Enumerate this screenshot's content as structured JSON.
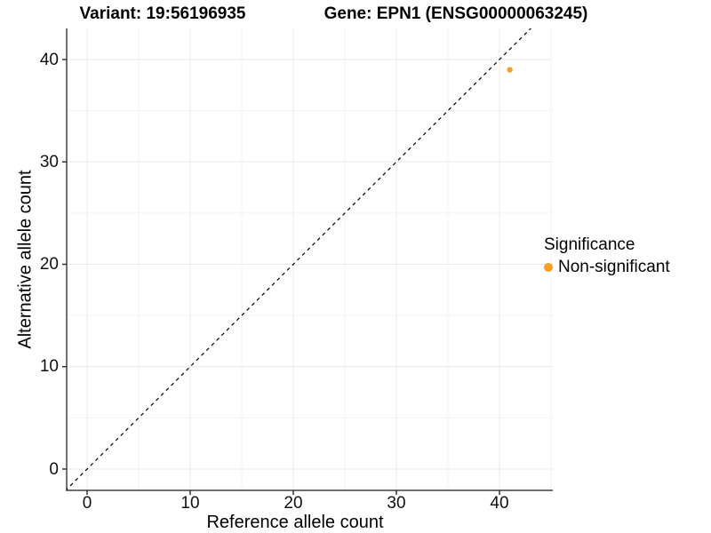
{
  "chart_data": {
    "type": "scatter",
    "title_left": "Variant: 19:56196935",
    "title_right": "Gene: EPN1 (ENSG00000063245)",
    "xlabel": "Reference allele count",
    "ylabel": "Alternative allele count",
    "xlim": [
      -2,
      45.2
    ],
    "ylim": [
      -2.1,
      43.1
    ],
    "x_ticks": [
      0,
      10,
      20,
      30,
      40
    ],
    "y_ticks": [
      0,
      10,
      20,
      30,
      40
    ],
    "x_minor_ticks": [
      5,
      15,
      25,
      35,
      45
    ],
    "y_minor_ticks": [
      5,
      15,
      25,
      35
    ],
    "grid": "major+minor",
    "series": [
      {
        "name": "Non-significant",
        "color": "#F99E23",
        "points": [
          {
            "x": 41,
            "y": 39
          }
        ]
      }
    ],
    "reference_line": {
      "kind": "identity y=x",
      "style": "dashed",
      "color": "#000000"
    },
    "legend": {
      "title": "Significance",
      "position": "right",
      "entries": [
        {
          "label": "Non-significant",
          "color": "#F99E23"
        }
      ]
    },
    "colors": {
      "axis_line": "#404040",
      "tick_mark": "#333333",
      "grid_major": "#e9e9e9",
      "grid_minor": "#f3f3f3",
      "text": "#000000"
    }
  }
}
